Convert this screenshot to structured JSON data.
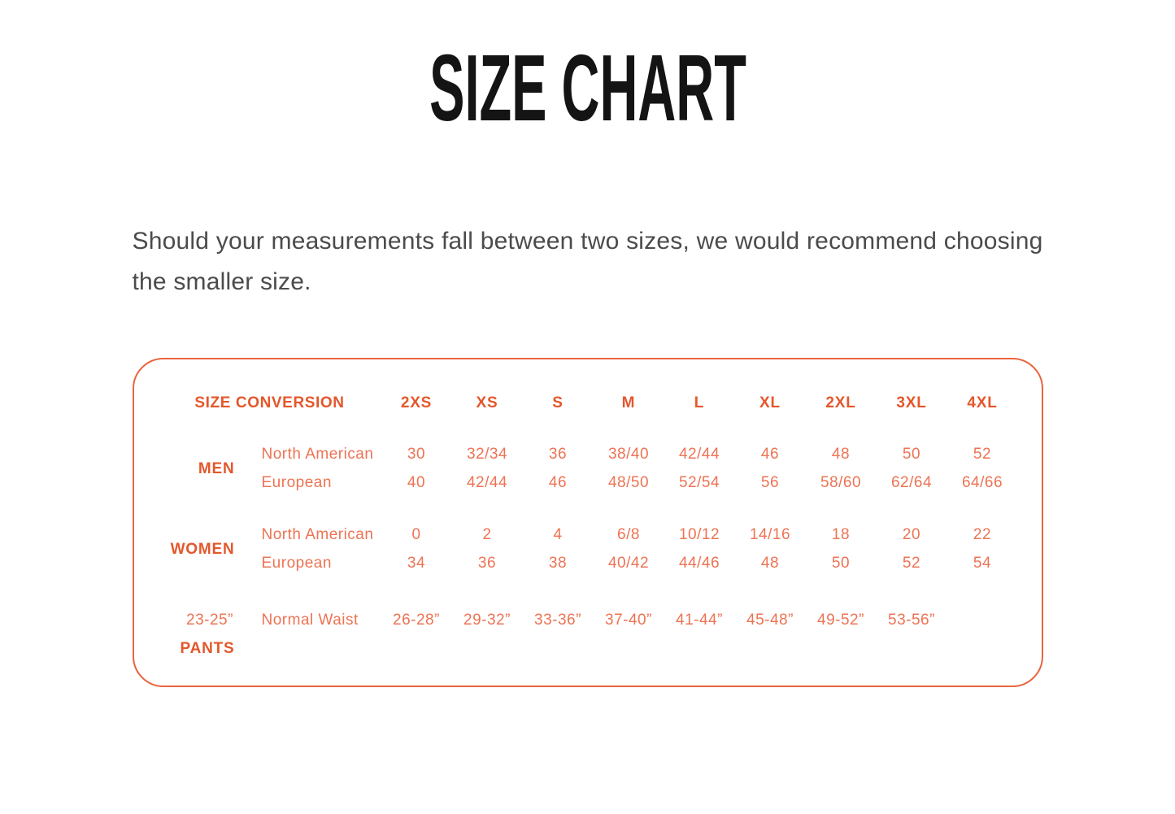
{
  "page": {
    "title": "SIZE CHART",
    "note": "Should your measurements fall between two sizes, we would recommend choosing the smaller size."
  },
  "colors": {
    "accent": "#e4572b",
    "accent_light": "#ed7354",
    "panel_border": "#e8643c",
    "body_text": "#4b4b4b",
    "title_text": "#141414"
  },
  "size_chart": {
    "header_label": "SIZE CONVERSION",
    "sizes": [
      "2XS",
      "XS",
      "S",
      "M",
      "L",
      "XL",
      "2XL",
      "3XL",
      "4XL"
    ],
    "groups": [
      {
        "label": "MEN",
        "rows": [
          {
            "label": "North American",
            "values": [
              "30",
              "32/34",
              "36",
              "38/40",
              "42/44",
              "46",
              "48",
              "50",
              "52"
            ]
          },
          {
            "label": "European",
            "values": [
              "40",
              "42/44",
              "46",
              "48/50",
              "52/54",
              "56",
              "58/60",
              "62/64",
              "64/66"
            ]
          }
        ]
      },
      {
        "label": "WOMEN",
        "rows": [
          {
            "label": "North American",
            "values": [
              "0",
              "2",
              "4",
              "6/8",
              "10/12",
              "14/16",
              "18",
              "20",
              "22"
            ]
          },
          {
            "label": "European",
            "values": [
              "34",
              "36",
              "38",
              "40/42",
              "44/46",
              "48",
              "50",
              "52",
              "54"
            ]
          }
        ]
      },
      {
        "label": "PANTS",
        "rows": [
          {
            "label": "Normal Waist",
            "values": [
              "23-25”",
              "26-28”",
              "29-32”",
              "33-36”",
              "37-40”",
              "41-44”",
              "45-48”",
              "49-52”",
              "53-56”"
            ]
          }
        ]
      }
    ]
  }
}
